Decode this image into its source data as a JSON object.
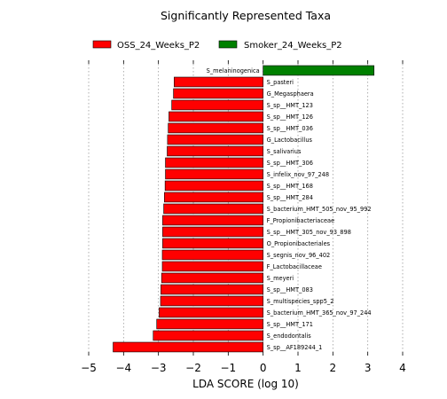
{
  "chart_data": {
    "type": "bar",
    "orientation": "horizontal",
    "title": "Significantly Represented Taxa",
    "xlabel": "LDA SCORE (log 10)",
    "ylabel": "",
    "xlim": [
      -5,
      4
    ],
    "xticks": [
      -5,
      -4,
      -3,
      -2,
      -1,
      0,
      1,
      2,
      3,
      4
    ],
    "xtick_labels": [
      "−5",
      "−4",
      "−3",
      "−2",
      "−1",
      "0",
      "1",
      "2",
      "3",
      "4"
    ],
    "grid": "vertical dotted",
    "legend_position": "top",
    "series": [
      {
        "name": "OSS_24_Weeks_P2",
        "color": "#ff0000"
      },
      {
        "name": "Smoker_24_Weeks_P2",
        "color": "#008000"
      }
    ],
    "bars": [
      {
        "label": "S_melaninogenica",
        "value": 3.18,
        "group": "Smoker_24_Weeks_P2"
      },
      {
        "label": "S_pasteri",
        "value": -2.55,
        "group": "OSS_24_Weeks_P2"
      },
      {
        "label": "G_Megasphaera",
        "value": -2.57,
        "group": "OSS_24_Weeks_P2"
      },
      {
        "label": "S_sp__HMT_123",
        "value": -2.62,
        "group": "OSS_24_Weeks_P2"
      },
      {
        "label": "S_sp__HMT_126",
        "value": -2.7,
        "group": "OSS_24_Weeks_P2"
      },
      {
        "label": "S_sp__HMT_036",
        "value": -2.72,
        "group": "OSS_24_Weeks_P2"
      },
      {
        "label": "G_Lactobacillus",
        "value": -2.74,
        "group": "OSS_24_Weeks_P2"
      },
      {
        "label": "S_salivarius",
        "value": -2.75,
        "group": "OSS_24_Weeks_P2"
      },
      {
        "label": "S_sp__HMT_306",
        "value": -2.8,
        "group": "OSS_24_Weeks_P2"
      },
      {
        "label": "S_infelix_nov_97_248",
        "value": -2.8,
        "group": "OSS_24_Weeks_P2"
      },
      {
        "label": "S_sp__HMT_168",
        "value": -2.81,
        "group": "OSS_24_Weeks_P2"
      },
      {
        "label": "S_sp__HMT_284",
        "value": -2.83,
        "group": "OSS_24_Weeks_P2"
      },
      {
        "label": "S_bacterium_HMT_505_nov_95_992",
        "value": -2.85,
        "group": "OSS_24_Weeks_P2"
      },
      {
        "label": "F_Propionibacteriaceae",
        "value": -2.88,
        "group": "OSS_24_Weeks_P2"
      },
      {
        "label": "S_sp__HMT_305_nov_93_898",
        "value": -2.88,
        "group": "OSS_24_Weeks_P2"
      },
      {
        "label": "O_Propionibacteriales",
        "value": -2.88,
        "group": "OSS_24_Weeks_P2"
      },
      {
        "label": "S_segnis_nov_96_402",
        "value": -2.89,
        "group": "OSS_24_Weeks_P2"
      },
      {
        "label": "F_Lactobacillaceae",
        "value": -2.89,
        "group": "OSS_24_Weeks_P2"
      },
      {
        "label": "S_meyeri",
        "value": -2.91,
        "group": "OSS_24_Weeks_P2"
      },
      {
        "label": "S_sp__HMT_083",
        "value": -2.93,
        "group": "OSS_24_Weeks_P2"
      },
      {
        "label": "S_multispecies_spp5_2",
        "value": -2.94,
        "group": "OSS_24_Weeks_P2"
      },
      {
        "label": "S_bacterium_HMT_365_nov_97_244",
        "value": -2.98,
        "group": "OSS_24_Weeks_P2"
      },
      {
        "label": "S_sp__HMT_171",
        "value": -3.05,
        "group": "OSS_24_Weeks_P2"
      },
      {
        "label": "S_endodontalis",
        "value": -3.15,
        "group": "OSS_24_Weeks_P2"
      },
      {
        "label": "S_sp__AF189244_1",
        "value": -4.3,
        "group": "OSS_24_Weeks_P2"
      }
    ]
  }
}
